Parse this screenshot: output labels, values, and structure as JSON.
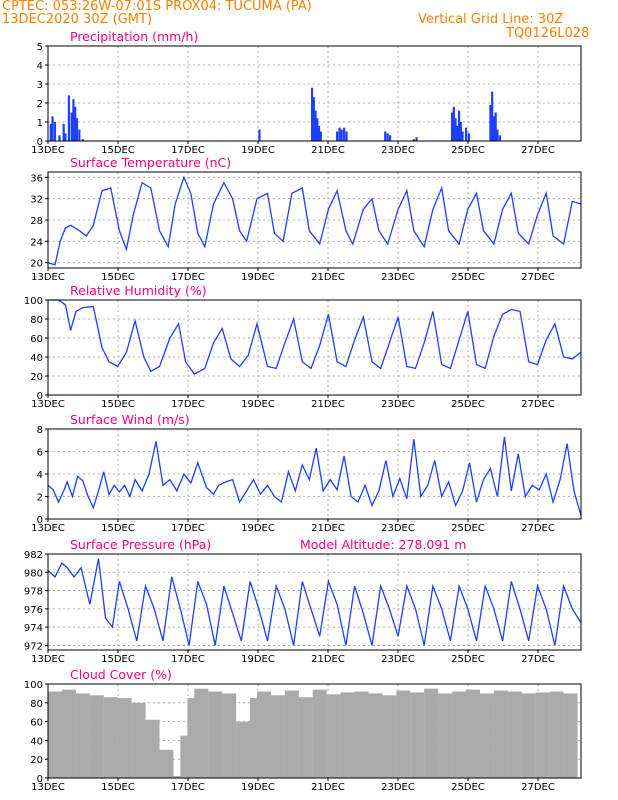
{
  "header": {
    "left_line1": "CPTEC:   053:26W-07:01S   PROX04: TUCUMA (PA)",
    "left_line2": "13DEC2020 30Z (GMT)",
    "right_line2": "Vertical Grid Line: 30Z",
    "right_line3": "TQ0126L028"
  },
  "colors": {
    "header": "#ff8000",
    "title": "#ff0080",
    "line": "#1f3fff",
    "bar": "#1f3fff",
    "cloud": "#aaaaaa"
  },
  "chart_data": [
    {
      "type": "bar",
      "title": "Precipitation (mm/h)",
      "ylim": [
        0,
        5
      ],
      "yticks": [
        0,
        1,
        2,
        3,
        4,
        5
      ],
      "xlim": [
        0,
        15.3
      ],
      "xticks": [
        "13DEC",
        "15DEC",
        "17DEC",
        "19DEC",
        "21DEC",
        "23DEC",
        "25DEC",
        "27DEC"
      ],
      "x": [
        0.08,
        0.13,
        0.2,
        0.33,
        0.45,
        0.5,
        0.6,
        0.68,
        0.73,
        0.78,
        0.83,
        0.9,
        1.0,
        6.07,
        7.58,
        7.63,
        7.68,
        7.73,
        7.78,
        7.83,
        8.3,
        8.37,
        8.43,
        8.5,
        8.57,
        9.68,
        9.75,
        9.82,
        10.5,
        10.58,
        11.6,
        11.65,
        11.7,
        11.75,
        11.8,
        11.85,
        11.9,
        12.0,
        12.08,
        12.7,
        12.75,
        12.8,
        12.85,
        12.9,
        12.97
      ],
      "values": [
        0.9,
        1.3,
        1.0,
        0.3,
        0.9,
        0.4,
        2.4,
        1.5,
        2.2,
        1.8,
        1.2,
        0.6,
        0.1,
        0.6,
        2.8,
        2.3,
        1.6,
        1.2,
        0.8,
        0.5,
        0.5,
        0.7,
        0.6,
        0.7,
        0.5,
        0.5,
        0.4,
        0.3,
        0.1,
        0.2,
        1.5,
        1.8,
        1.2,
        0.8,
        1.6,
        1.0,
        0.5,
        0.7,
        0.4,
        1.9,
        2.6,
        1.3,
        1.5,
        0.6,
        0.3
      ]
    },
    {
      "type": "line",
      "title": "Surface Temperature (nC)",
      "ylim": [
        19,
        37
      ],
      "yticks": [
        20,
        24,
        28,
        32,
        36
      ],
      "xlim": [
        0,
        15.3
      ],
      "xticks": [
        "13DEC",
        "15DEC",
        "17DEC",
        "19DEC",
        "21DEC",
        "23DEC",
        "25DEC",
        "27DEC"
      ],
      "x": [
        0,
        0.1,
        0.2,
        0.35,
        0.5,
        0.65,
        0.9,
        1.1,
        1.3,
        1.55,
        1.8,
        2.05,
        2.25,
        2.45,
        2.7,
        2.95,
        3.2,
        3.45,
        3.65,
        3.9,
        4.1,
        4.3,
        4.5,
        4.75,
        5.05,
        5.3,
        5.5,
        5.7,
        6.0,
        6.3,
        6.5,
        6.75,
        7.0,
        7.3,
        7.5,
        7.8,
        8.05,
        8.3,
        8.55,
        8.75,
        9.05,
        9.3,
        9.5,
        9.75,
        10.05,
        10.3,
        10.5,
        10.8,
        11.05,
        11.3,
        11.5,
        11.8,
        12.05,
        12.3,
        12.5,
        12.8,
        13.05,
        13.3,
        13.5,
        13.8,
        14.05,
        14.3,
        14.5,
        14.8,
        15.05,
        15.3
      ],
      "values": [
        20,
        19.8,
        19.6,
        24,
        26.5,
        27,
        26,
        25,
        27,
        33.5,
        34,
        26,
        22.5,
        29,
        35,
        34,
        26,
        23,
        31,
        36,
        33,
        25.5,
        23,
        31,
        35,
        32,
        26,
        24,
        32,
        33,
        25.5,
        24,
        33,
        34,
        26,
        23.5,
        30,
        33.5,
        26,
        23.5,
        30,
        32,
        26,
        23.5,
        30,
        33.5,
        26,
        23,
        30,
        34,
        26,
        23.5,
        30,
        33,
        26,
        23.5,
        30,
        33,
        25.5,
        23.5,
        29,
        33,
        25,
        23.5,
        31.5,
        31
      ]
    },
    {
      "type": "line",
      "title": "Relative Humidity (%)",
      "ylim": [
        0,
        100
      ],
      "yticks": [
        0,
        20,
        40,
        60,
        80,
        100
      ],
      "xlim": [
        0,
        15.3
      ],
      "xticks": [
        "13DEC",
        "15DEC",
        "17DEC",
        "19DEC",
        "21DEC",
        "23DEC",
        "25DEC",
        "27DEC"
      ],
      "x": [
        0,
        0.3,
        0.5,
        0.65,
        0.8,
        1.0,
        1.3,
        1.55,
        1.75,
        2.0,
        2.25,
        2.5,
        2.75,
        2.95,
        3.2,
        3.5,
        3.75,
        3.95,
        4.2,
        4.5,
        4.75,
        5.0,
        5.25,
        5.5,
        5.75,
        6.0,
        6.3,
        6.55,
        6.8,
        7.05,
        7.3,
        7.55,
        7.8,
        8.05,
        8.3,
        8.55,
        8.8,
        9.05,
        9.3,
        9.55,
        9.8,
        10.05,
        10.3,
        10.55,
        10.8,
        11.05,
        11.3,
        11.55,
        11.8,
        12.05,
        12.3,
        12.55,
        12.8,
        13.05,
        13.3,
        13.55,
        13.8,
        14.05,
        14.3,
        14.55,
        14.8,
        15.05,
        15.3
      ],
      "values": [
        100,
        100,
        95,
        68,
        88,
        92,
        93,
        50,
        35,
        30,
        45,
        78,
        40,
        25,
        30,
        60,
        75,
        35,
        22,
        28,
        55,
        70,
        38,
        30,
        42,
        75,
        30,
        28,
        55,
        80,
        35,
        28,
        52,
        85,
        35,
        30,
        58,
        82,
        35,
        28,
        55,
        82,
        30,
        28,
        55,
        88,
        32,
        28,
        58,
        88,
        32,
        28,
        62,
        85,
        90,
        88,
        35,
        32,
        58,
        75,
        40,
        38,
        45
      ]
    },
    {
      "type": "line",
      "title": "Surface Wind (m/s)",
      "ylim": [
        0,
        8
      ],
      "yticks": [
        0,
        2,
        4,
        6,
        8
      ],
      "xlim": [
        0,
        15.3
      ],
      "xticks": [
        "13DEC",
        "15DEC",
        "17DEC",
        "19DEC",
        "21DEC",
        "23DEC",
        "25DEC",
        "27DEC"
      ],
      "x": [
        0,
        0.15,
        0.3,
        0.45,
        0.55,
        0.7,
        0.85,
        1.0,
        1.15,
        1.3,
        1.45,
        1.6,
        1.75,
        1.9,
        2.05,
        2.2,
        2.35,
        2.5,
        2.7,
        2.9,
        3.1,
        3.3,
        3.5,
        3.7,
        3.9,
        4.1,
        4.3,
        4.55,
        4.75,
        4.9,
        5.1,
        5.3,
        5.5,
        5.7,
        5.9,
        6.1,
        6.3,
        6.5,
        6.7,
        6.9,
        7.1,
        7.3,
        7.5,
        7.7,
        7.9,
        8.1,
        8.3,
        8.5,
        8.7,
        8.9,
        9.1,
        9.3,
        9.5,
        9.7,
        9.9,
        10.1,
        10.3,
        10.5,
        10.7,
        10.9,
        11.1,
        11.3,
        11.5,
        11.7,
        11.9,
        12.1,
        12.3,
        12.5,
        12.7,
        12.9,
        13.1,
        13.3,
        13.5,
        13.7,
        13.9,
        14.1,
        14.3,
        14.5,
        14.7,
        14.9,
        15.1,
        15.3
      ],
      "values": [
        3,
        2.6,
        1.5,
        2.5,
        3.3,
        2.0,
        3.8,
        3.4,
        2.0,
        1.0,
        2.5,
        4.2,
        2.2,
        3.0,
        2.4,
        3.0,
        2.0,
        3.5,
        2.5,
        4.0,
        6.9,
        3.0,
        3.5,
        2.5,
        4.0,
        3.2,
        5.0,
        2.8,
        2.2,
        3.0,
        3.3,
        3.5,
        1.5,
        2.5,
        3.5,
        2.2,
        3.0,
        2.0,
        1.5,
        4.2,
        2.5,
        4.8,
        3.5,
        6.3,
        2.5,
        3.5,
        2.6,
        5.6,
        2.0,
        1.5,
        3.0,
        1.2,
        2.5,
        5.2,
        2.0,
        3.6,
        1.8,
        7.1,
        2.0,
        3.0,
        5.2,
        2.0,
        3.3,
        1.2,
        2.5,
        5.0,
        1.5,
        3.5,
        4.5,
        2.0,
        7.3,
        2.5,
        5.8,
        2.0,
        3.0,
        2.6,
        4.0,
        1.5,
        3.5,
        6.7,
        2.5,
        0.3
      ]
    },
    {
      "type": "line",
      "title": "Surface Pressure (hPa)",
      "annotation": "Model Altitude: 278.091 m",
      "ylim": [
        971.5,
        982
      ],
      "yticks": [
        972,
        974,
        976,
        978,
        980,
        982
      ],
      "xlim": [
        0,
        15.3
      ],
      "xticks": [
        "13DEC",
        "15DEC",
        "17DEC",
        "19DEC",
        "21DEC",
        "23DEC",
        "25DEC",
        "27DEC"
      ],
      "x": [
        0,
        0.2,
        0.4,
        0.55,
        0.75,
        0.95,
        1.2,
        1.45,
        1.65,
        1.85,
        2.05,
        2.3,
        2.55,
        2.8,
        3.05,
        3.3,
        3.55,
        3.8,
        4.05,
        4.3,
        4.55,
        4.8,
        5.05,
        5.3,
        5.55,
        5.8,
        6.05,
        6.3,
        6.55,
        6.8,
        7.05,
        7.3,
        7.55,
        7.8,
        8.05,
        8.3,
        8.55,
        8.8,
        9.05,
        9.3,
        9.55,
        9.8,
        10.05,
        10.3,
        10.55,
        10.8,
        11.05,
        11.3,
        11.55,
        11.8,
        12.05,
        12.3,
        12.55,
        12.8,
        13.05,
        13.3,
        13.55,
        13.8,
        14.05,
        14.3,
        14.55,
        14.8,
        15.05,
        15.3
      ],
      "values": [
        980.2,
        979.5,
        981,
        980.5,
        979.5,
        980.5,
        976.5,
        981.5,
        975,
        974,
        979,
        976,
        972.5,
        978.5,
        976,
        972.5,
        979.5,
        976,
        972,
        979,
        976.5,
        972,
        978.5,
        975.5,
        972.5,
        979,
        976,
        972.5,
        978.5,
        976,
        972,
        979,
        976,
        973,
        979,
        976.5,
        972,
        978.5,
        975.5,
        972,
        978.5,
        976,
        973,
        978.5,
        976,
        972,
        978.5,
        976,
        972.5,
        978.5,
        976,
        972.5,
        978.5,
        976,
        972.5,
        979,
        976,
        972.5,
        978.5,
        976,
        972,
        978.5,
        976,
        974.5
      ]
    },
    {
      "type": "bar",
      "title": "Cloud Cover (%)",
      "ylim": [
        0,
        100
      ],
      "yticks": [
        0,
        20,
        40,
        60,
        80,
        100
      ],
      "xlim": [
        0,
        15.3
      ],
      "xticks": [
        "13DEC",
        "15DEC",
        "17DEC",
        "19DEC",
        "21DEC",
        "23DEC",
        "25DEC",
        "27DEC"
      ],
      "x": [
        0.2,
        0.6,
        1.0,
        1.4,
        1.8,
        2.2,
        2.6,
        3.0,
        3.4,
        3.6,
        3.8,
        4.0,
        4.2,
        4.4,
        4.8,
        5.2,
        5.6,
        6.0,
        6.2,
        6.6,
        7.0,
        7.4,
        7.8,
        8.2,
        8.6,
        9.0,
        9.4,
        9.8,
        10.2,
        10.6,
        11.0,
        11.4,
        11.8,
        12.2,
        12.6,
        13.0,
        13.4,
        13.8,
        14.2,
        14.6,
        15.0
      ],
      "values": [
        92,
        94,
        90,
        88,
        86,
        85,
        80,
        62,
        30,
        2,
        2,
        45,
        85,
        95,
        92,
        90,
        60,
        85,
        92,
        88,
        93,
        86,
        94,
        89,
        91,
        92,
        90,
        88,
        93,
        91,
        95,
        90,
        92,
        94,
        90,
        93,
        92,
        90,
        91,
        92,
        90
      ]
    }
  ]
}
